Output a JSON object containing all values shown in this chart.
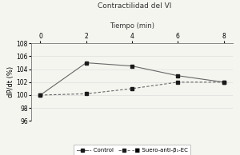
{
  "title": "Contractilidad del VI",
  "xlabel": "Tiempo (min)",
  "ylabel": "dP/dt (%)",
  "x": [
    0,
    2,
    4,
    6,
    8
  ],
  "control_y": [
    100,
    105,
    104.5,
    103,
    102
  ],
  "suero_y": [
    100,
    100.2,
    101,
    102,
    102
  ],
  "ylim": [
    96,
    108
  ],
  "yticks": [
    96,
    98,
    100,
    102,
    104,
    106,
    108
  ],
  "xticks": [
    0,
    2,
    4,
    6,
    8
  ],
  "line_color": "#666666",
  "marker_color": "#1a1a1a",
  "background_color": "#f5f5f0",
  "grid_color": "#dddddd",
  "legend_label_control": "- Control",
  "legend_label_suero": "–■ Suero-anti-β₁-EC",
  "title_fontsize": 6.5,
  "xlabel_fontsize": 6,
  "ylabel_fontsize": 6,
  "tick_fontsize": 5.5,
  "legend_fontsize": 5
}
